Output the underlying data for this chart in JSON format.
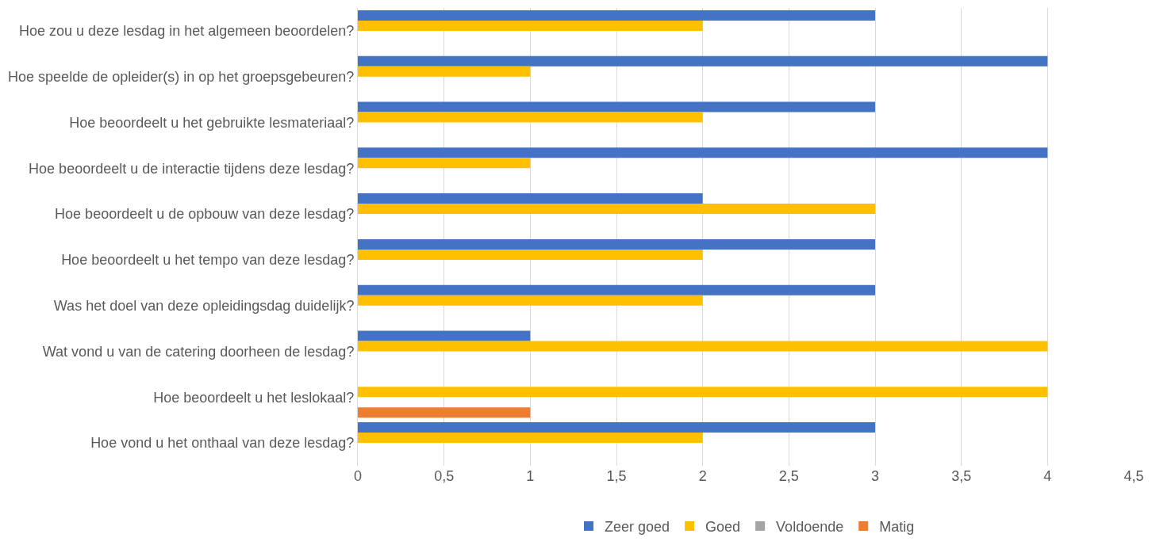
{
  "chart_data": {
    "type": "bar",
    "orientation": "horizontal",
    "categories": [
      "Hoe zou u deze lesdag in het algemeen beoordelen?",
      "Hoe speelde de opleider(s) in op het groepsgebeuren?",
      "Hoe beoordeelt u het gebruikte lesmateriaal?",
      "Hoe beoordeelt u de interactie tijdens deze lesdag?",
      "Hoe beoordeelt u de opbouw van deze lesdag?",
      "Hoe beoordeelt u het tempo van deze lesdag?",
      "Was het doel van deze opleidingsdag duidelijk?",
      "Wat vond u van de catering doorheen de lesdag?",
      "Hoe beoordeelt u het leslokaal?",
      "Hoe vond u het onthaal van deze lesdag?"
    ],
    "series": [
      {
        "name": "Zeer goed",
        "color": "#4472c4",
        "values": [
          3,
          4,
          3,
          4,
          2,
          3,
          3,
          1,
          0,
          3
        ]
      },
      {
        "name": "Goed",
        "color": "#ffc000",
        "values": [
          2,
          1,
          2,
          1,
          3,
          2,
          2,
          4,
          4,
          2
        ]
      },
      {
        "name": "Voldoende",
        "color": "#a5a5a5",
        "values": [
          0,
          0,
          0,
          0,
          0,
          0,
          0,
          0,
          0,
          0
        ]
      },
      {
        "name": "Matig",
        "color": "#ed7d31",
        "values": [
          0,
          0,
          0,
          0,
          0,
          0,
          0,
          0,
          1,
          0
        ]
      }
    ],
    "xlim": [
      0,
      4.5
    ],
    "xticks": [
      0,
      {
        "value": 0.5,
        "label": "0,5"
      },
      1,
      {
        "value": 1.5,
        "label": "1,5"
      },
      2,
      {
        "value": 2.5,
        "label": "2,5"
      },
      3,
      {
        "value": 3.5,
        "label": "3,5"
      },
      4,
      {
        "value": 4.5,
        "label": "4,5"
      }
    ],
    "grid": "x",
    "legend": "bottom"
  }
}
